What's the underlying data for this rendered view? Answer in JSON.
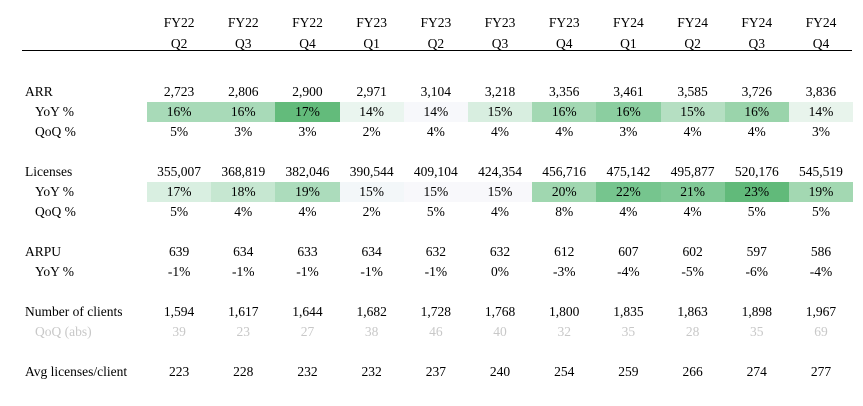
{
  "columns": [
    {
      "fy": "FY22",
      "q": "Q2"
    },
    {
      "fy": "FY22",
      "q": "Q3"
    },
    {
      "fy": "FY22",
      "q": "Q4"
    },
    {
      "fy": "FY23",
      "q": "Q1"
    },
    {
      "fy": "FY23",
      "q": "Q2"
    },
    {
      "fy": "FY23",
      "q": "Q3"
    },
    {
      "fy": "FY23",
      "q": "Q4"
    },
    {
      "fy": "FY24",
      "q": "Q1"
    },
    {
      "fy": "FY24",
      "q": "Q2"
    },
    {
      "fy": "FY24",
      "q": "Q3"
    },
    {
      "fy": "FY24",
      "q": "Q4"
    }
  ],
  "rows": {
    "arr": {
      "label": "ARR",
      "values": [
        "2,723",
        "2,806",
        "2,900",
        "2,971",
        "3,104",
        "3,218",
        "3,356",
        "3,461",
        "3,585",
        "3,726",
        "3,836"
      ]
    },
    "arr_yoy": {
      "label": "YoY %",
      "values": [
        "16%",
        "16%",
        "17%",
        "14%",
        "14%",
        "15%",
        "16%",
        "16%",
        "15%",
        "16%",
        "14%"
      ],
      "colors": [
        "#a8dab8",
        "#a8dab8",
        "#63bb7b",
        "#eaf5ef",
        "#f7f8fb",
        "#d8eee0",
        "#a3d8b3",
        "#8bcea0",
        "#b5dfc2",
        "#9ad4ab",
        "#e8f4ec"
      ]
    },
    "arr_qoq": {
      "label": "QoQ %",
      "values": [
        "5%",
        "3%",
        "3%",
        "2%",
        "4%",
        "4%",
        "4%",
        "3%",
        "4%",
        "4%",
        "3%"
      ]
    },
    "lic": {
      "label": "Licenses",
      "values": [
        "355,007",
        "368,819",
        "382,046",
        "390,544",
        "409,104",
        "424,354",
        "456,716",
        "475,142",
        "495,877",
        "520,176",
        "545,519"
      ]
    },
    "lic_yoy": {
      "label": "YoY %",
      "values": [
        "17%",
        "18%",
        "19%",
        "15%",
        "15%",
        "15%",
        "20%",
        "22%",
        "21%",
        "23%",
        "19%"
      ],
      "colors": [
        "#d9efe1",
        "#c6e7d1",
        "#acdcbc",
        "#f3f7f9",
        "#f8f8fb",
        "#f8f8fb",
        "#a0d7b0",
        "#76c58e",
        "#80c996",
        "#61ba7a",
        "#a3d8b2"
      ]
    },
    "lic_qoq": {
      "label": "QoQ %",
      "values": [
        "5%",
        "4%",
        "4%",
        "2%",
        "5%",
        "4%",
        "8%",
        "4%",
        "4%",
        "5%",
        "5%"
      ]
    },
    "arpu": {
      "label": "ARPU",
      "values": [
        "639",
        "634",
        "633",
        "634",
        "632",
        "632",
        "612",
        "607",
        "602",
        "597",
        "586"
      ]
    },
    "arpu_yoy": {
      "label": "YoY %",
      "values": [
        "-1%",
        "-1%",
        "-1%",
        "-1%",
        "-1%",
        "0%",
        "-3%",
        "-4%",
        "-5%",
        "-6%",
        "-4%"
      ]
    },
    "clients": {
      "label": "Number of clients",
      "values": [
        "1,594",
        "1,617",
        "1,644",
        "1,682",
        "1,728",
        "1,768",
        "1,800",
        "1,835",
        "1,863",
        "1,898",
        "1,967"
      ]
    },
    "clients_qoq": {
      "label": "QoQ (abs)",
      "values": [
        "39",
        "23",
        "27",
        "38",
        "46",
        "40",
        "32",
        "35",
        "28",
        "35",
        "69"
      ]
    },
    "avg": {
      "label": "Avg licenses/client",
      "values": [
        "223",
        "228",
        "232",
        "232",
        "237",
        "240",
        "254",
        "259",
        "266",
        "274",
        "277"
      ]
    }
  }
}
